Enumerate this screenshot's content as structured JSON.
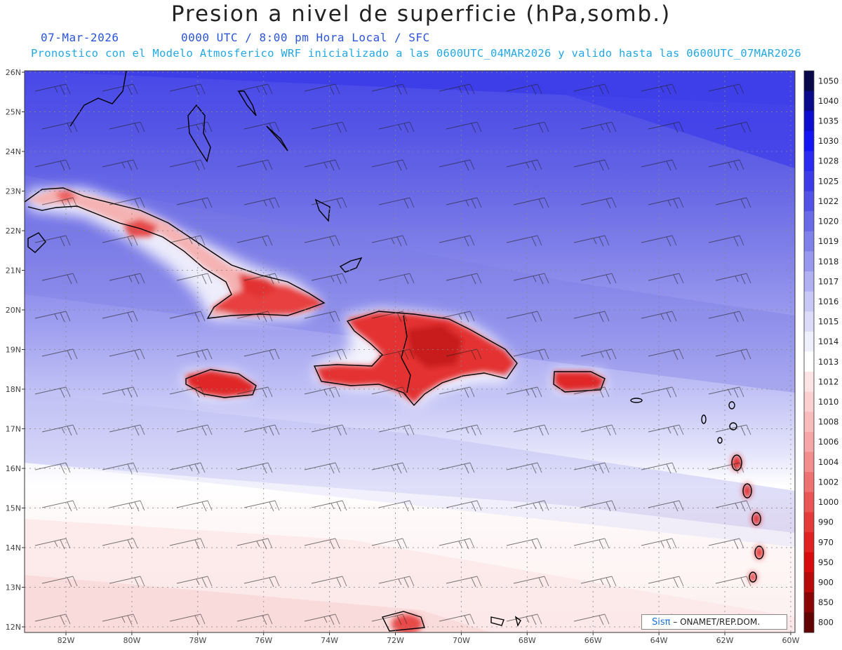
{
  "title": "Presion a nivel de superficie (hPa,somb.)",
  "date": "07-Mar-2026",
  "time_info": "0000 UTC / 8:00 pm Hora Local / SFC",
  "forecast_info": "Pronostico con el Modelo Atmosferico WRF inicializado a las 0600UTC_04MAR2026 y valido hasta las  0600UTC_07MAR2026",
  "lat_labels": [
    "26N",
    "25N",
    "24N",
    "23N",
    "22N",
    "21N",
    "20N",
    "19N",
    "18N",
    "17N",
    "16N",
    "15N",
    "14N",
    "13N",
    "12N"
  ],
  "lon_labels": [
    "82W",
    "80W",
    "78W",
    "76W",
    "74W",
    "72W",
    "70W",
    "68W",
    "66W",
    "64W",
    "62W",
    "60W"
  ],
  "colorbar": {
    "levels": [
      "1050",
      "1040",
      "1035",
      "1030",
      "1028",
      "1025",
      "1022",
      "1020",
      "1019",
      "1018",
      "1017",
      "1016",
      "1015",
      "1014",
      "1013",
      "1012",
      "1010",
      "1008",
      "1006",
      "1004",
      "1002",
      "1000",
      "990",
      "970",
      "950",
      "900",
      "850",
      "800"
    ],
    "colors": [
      "#08084a",
      "#0a0a8a",
      "#0d0dd0",
      "#1414f5",
      "#2a2af0",
      "#3c3ce8",
      "#5252e6",
      "#6a6ae8",
      "#8080ea",
      "#9898ee",
      "#b0b0f2",
      "#c8c8f6",
      "#dcdcfa",
      "#f0f0fd",
      "#ffffff",
      "#fde4e4",
      "#fbd0d0",
      "#f8bcbc",
      "#f5a6a6",
      "#f28e8e",
      "#ee7272",
      "#ea5656",
      "#e53a3a",
      "#e02222",
      "#d80c0c",
      "#b80a0a",
      "#8a0606",
      "#600404"
    ]
  },
  "credit": {
    "logo": "Sisπ",
    "text": "– ONAMET/REP.DOM."
  },
  "icons": [
    "wind-barb-icon"
  ]
}
